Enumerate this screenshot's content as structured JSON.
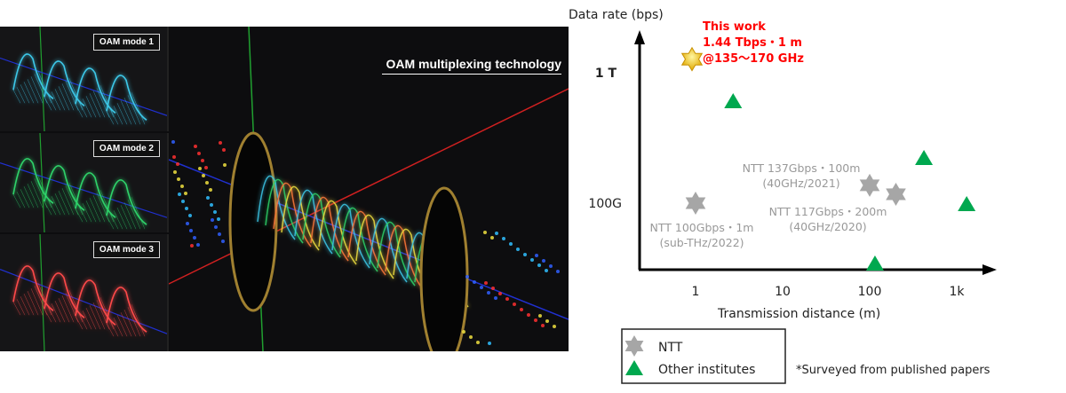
{
  "illustration": {
    "title": "OAM multiplexing technology",
    "modes": [
      "OAM mode 1",
      "OAM mode 2",
      "OAM mode 3"
    ],
    "mode_colors": [
      "#3cc8e8",
      "#2fd36a",
      "#ff4a4a"
    ]
  },
  "chart_data": {
    "type": "scatter",
    "ylabel": "Data rate  (bps)",
    "xlabel": "Transmission distance (m)",
    "x_scale": "log",
    "y_scale": "log",
    "x_ticks": [
      {
        "value": 1,
        "label": "1"
      },
      {
        "value": 10,
        "label": "10"
      },
      {
        "value": 100,
        "label": "100"
      },
      {
        "value": 1000,
        "label": "1k"
      }
    ],
    "y_ticks": [
      {
        "value": 100,
        "label": "100G"
      },
      {
        "value": 1000,
        "label": "1 T"
      }
    ],
    "y_units": "Gbps",
    "xlim": [
      0.23,
      2500
    ],
    "ylim": [
      31,
      2100
    ],
    "this_work": {
      "x": 1,
      "y": 1440,
      "label_lines": [
        "This work",
        "1.44 Tbps・1 m",
        "@135〜170 GHz"
      ],
      "color": "#ff0000"
    },
    "series": [
      {
        "name": "NTT",
        "marker": "star6",
        "color": "#a6a6a6",
        "points": [
          {
            "x": 1,
            "y": 100,
            "label_lines": [
              "NTT 100Gbps・1m",
              "(sub-THz/2022)"
            ]
          },
          {
            "x": 100,
            "y": 137,
            "label_lines": [
              "NTT 137Gbps・100m",
              "(40GHz/2021)"
            ]
          },
          {
            "x": 200,
            "y": 117,
            "label_lines": [
              "NTT 117Gbps・200m",
              "(40GHz/2020)"
            ]
          }
        ]
      },
      {
        "name": "Other institutes",
        "marker": "triangle",
        "color": "#00a84f",
        "points": [
          {
            "x": 2.7,
            "y": 615
          },
          {
            "x": 420,
            "y": 226
          },
          {
            "x": 1300,
            "y": 100
          },
          {
            "x": 115,
            "y": 35
          }
        ]
      }
    ],
    "legend": {
      "placement": "bottom-left",
      "entries": [
        "NTT",
        "Other institutes"
      ]
    },
    "footnote": "*Surveyed from published papers"
  }
}
